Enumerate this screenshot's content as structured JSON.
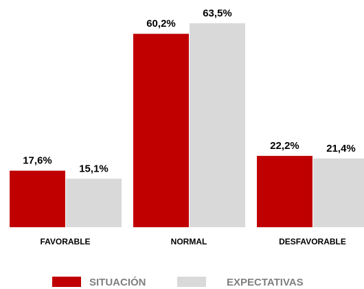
{
  "chart_data": {
    "type": "bar",
    "categories": [
      "FAVORABLE",
      "NORMAL",
      "DESFAVORABLE"
    ],
    "series": [
      {
        "name": "SITUACIÓN",
        "color": "#c00000",
        "values": [
          17.6,
          60.2,
          22.2
        ],
        "value_labels": [
          "17,6%",
          "60,2%",
          "22,2%"
        ]
      },
      {
        "name": "EXPECTATIVAS",
        "color": "#d9d9d9",
        "values": [
          15.1,
          63.5,
          21.4
        ],
        "value_labels": [
          "15,1%",
          "63,5%",
          "21,4%"
        ]
      }
    ]
  }
}
